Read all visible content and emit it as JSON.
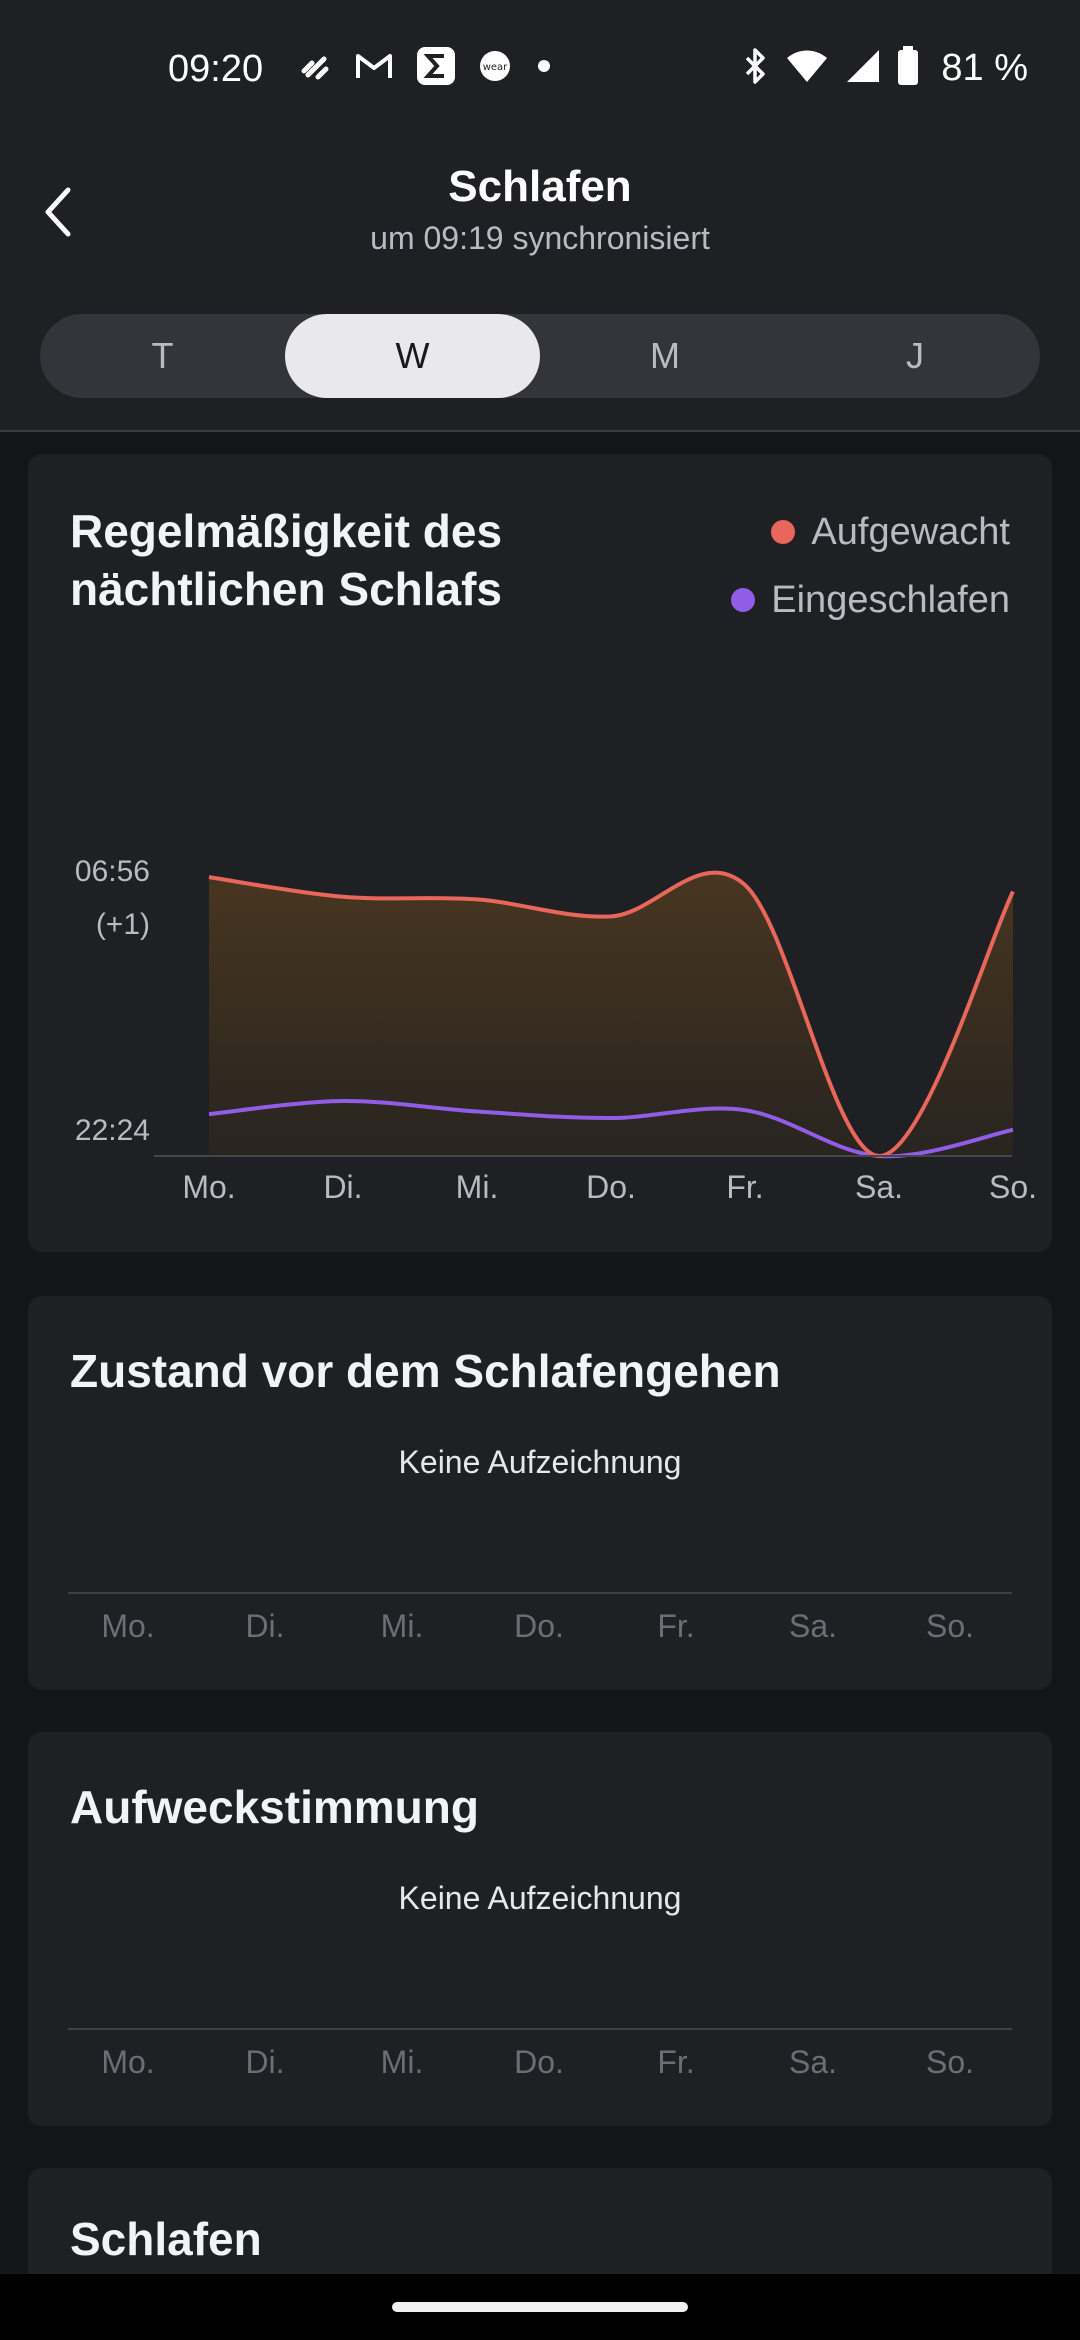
{
  "status_bar": {
    "time": "09:20",
    "battery_text": "81 %",
    "icons_left": [
      "dumbbell-icon",
      "gmail-icon",
      "sigma-icon",
      "wear-icon",
      "dot-icon"
    ],
    "icons_right": [
      "bluetooth-icon",
      "wifi-icon",
      "signal-icon",
      "battery-icon"
    ]
  },
  "header": {
    "title": "Schlafen",
    "subtitle": "um 09:19 synchronisiert",
    "back_icon": "chevron-left-icon"
  },
  "tabs": [
    {
      "label": "T",
      "selected": false
    },
    {
      "label": "W",
      "selected": true
    },
    {
      "label": "M",
      "selected": false
    },
    {
      "label": "J",
      "selected": false
    }
  ],
  "regularity_card": {
    "title_line1": "Regelmäßigkeit des",
    "title_line2": "nächtlichen Schlafs",
    "legend_woke": "Aufgewacht",
    "legend_asleep": "Eingeschlafen",
    "y_top_line1": "06:56",
    "y_top_line2": "(+1)",
    "y_bottom": "22:24"
  },
  "chart_data": {
    "type": "area",
    "categories": [
      "Mo.",
      "Di.",
      "Mi.",
      "Do.",
      "Fr.",
      "Sa.",
      "So."
    ],
    "y_tick_labels": [
      "22:24",
      "06:56 (+1)"
    ],
    "series": [
      {
        "name": "Aufgewacht",
        "color": "#e8675a",
        "values": [
          6.93,
          6.78,
          6.76,
          6.63,
          6.87,
          4.8,
          6.82
        ]
      },
      {
        "name": "Eingeschlafen",
        "color": "#8f5de6",
        "values": [
          5.12,
          5.22,
          5.14,
          5.09,
          5.15,
          4.8,
          5.0
        ]
      }
    ],
    "fill_color": "#3a2d1c"
  },
  "state_card": {
    "title": "Zustand vor dem Schlafengehen",
    "no_record": "Keine Aufzeichnung",
    "days": [
      "Mo.",
      "Di.",
      "Mi.",
      "Do.",
      "Fr.",
      "Sa.",
      "So."
    ]
  },
  "wake_card": {
    "title": "Aufweckstimmung",
    "no_record": "Keine Aufzeichnung",
    "days": [
      "Mo.",
      "Di.",
      "Mi.",
      "Do.",
      "Fr.",
      "Sa.",
      "So."
    ]
  },
  "sleep_card": {
    "title": "Schlafen"
  },
  "colors": {
    "accent_woke": "#e8675a",
    "accent_asleep": "#8f5de6",
    "card_bg": "#1f2024",
    "page_bg": "#141518"
  }
}
